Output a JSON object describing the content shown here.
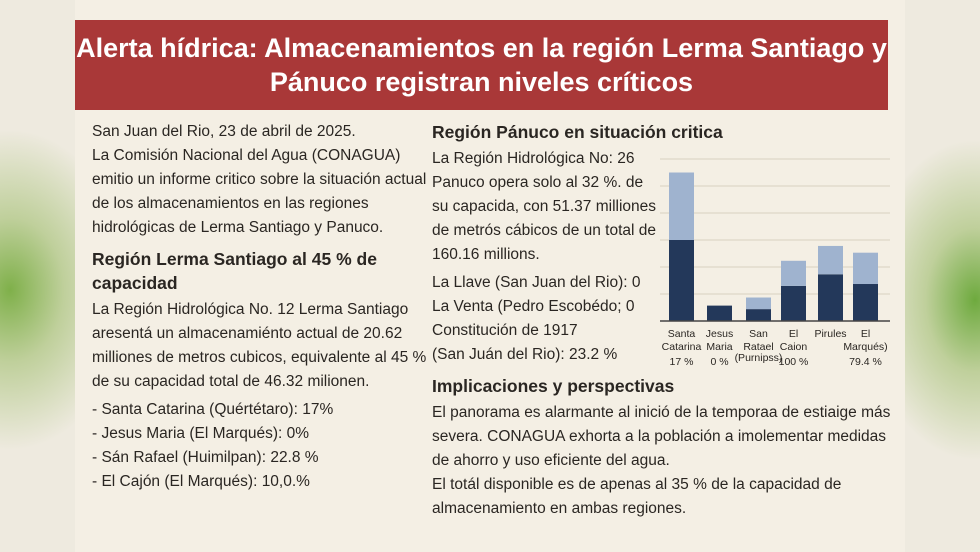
{
  "headline": "Alerta hídrica: Almacenamientos en la región Lerma Santiago y Pánuco registran niveles críticos",
  "intro": [
    "San Juan del Rio, 23 de abril de 2025.",
    "La Comisión Nacional del Agua (CONAGUA) emitio un informe critico sobre la situación actual de los almacenamientos en las regiones hidrológicas de Lerma Santiago y Panuco."
  ],
  "lerma": {
    "heading": "Región Lerma Santiago al 45 % de capacidad",
    "body": "La Región Hidrológica No. 12 Lerma Santiago aresentá un almacenamiénto actual de 20.62 milliones de metros cubicos, equivalente al 45 % de su capacidad total de 46.32 milionen.",
    "items": [
      "- Santa Catarina (Quértétaro): 17%",
      "- Jesus Maria (El Marqués):  0%",
      "- Sán Rafael (Huimilpan): 22.8 %",
      "- El Cajón (El Marqués): 10,0.%"
    ]
  },
  "panuco": {
    "heading": "Región Pánuco en situación critica",
    "body": "La Región Hidrológica No: 26 Panuco opera solo al 32 %. de su capacida, con 51.37 milliones de metrós cábicos de un total de 160.16 millions.",
    "items": [
      "La Llave (San Juan del Rio): 0",
      "La Venta (Pedro Escobédo; 0",
      "Constitución de 1917",
      "(San Juán del Rio): 23.2 %"
    ]
  },
  "implicaciones": {
    "heading": "Implicaciones y perspectivas",
    "body": [
      "El panorama es alarmante al inició de la temporaa de estiaige más severa. CONAGUA exhorta a la población a imolementar medidas de ahorro y uso eficiente del agua.",
      "El totál disponible es de apenas al 35 % de la capacidad de almacenamiento en ambas regiones."
    ]
  },
  "chart_data": {
    "type": "bar",
    "stacked": true,
    "grid": true,
    "ylim": [
      0,
      6
    ],
    "categories": [
      [
        "Santa",
        "Catarina"
      ],
      [
        "Jesus",
        "Maria"
      ],
      [
        "San",
        "Ratael"
      ],
      [
        "El",
        "Caion"
      ],
      [
        "Pirules",
        ""
      ],
      [
        "El",
        "Marqués)"
      ]
    ],
    "sublabels": [
      "17 %",
      "0 %",
      "(Purnipss)",
      "100 %",
      "",
      "79.4 %"
    ],
    "series": [
      {
        "values": [
          3.0,
          0.57,
          0.44,
          1.3,
          1.73,
          1.37
        ],
        "color": "#23385a"
      },
      {
        "values": [
          2.5,
          0,
          0.43,
          0.93,
          1.05,
          1.16
        ],
        "color": "#9fb3cf"
      }
    ]
  },
  "colors": {
    "banner": "#a93838",
    "bar_dark": "#23385a",
    "bar_light": "#9fb3cf"
  }
}
